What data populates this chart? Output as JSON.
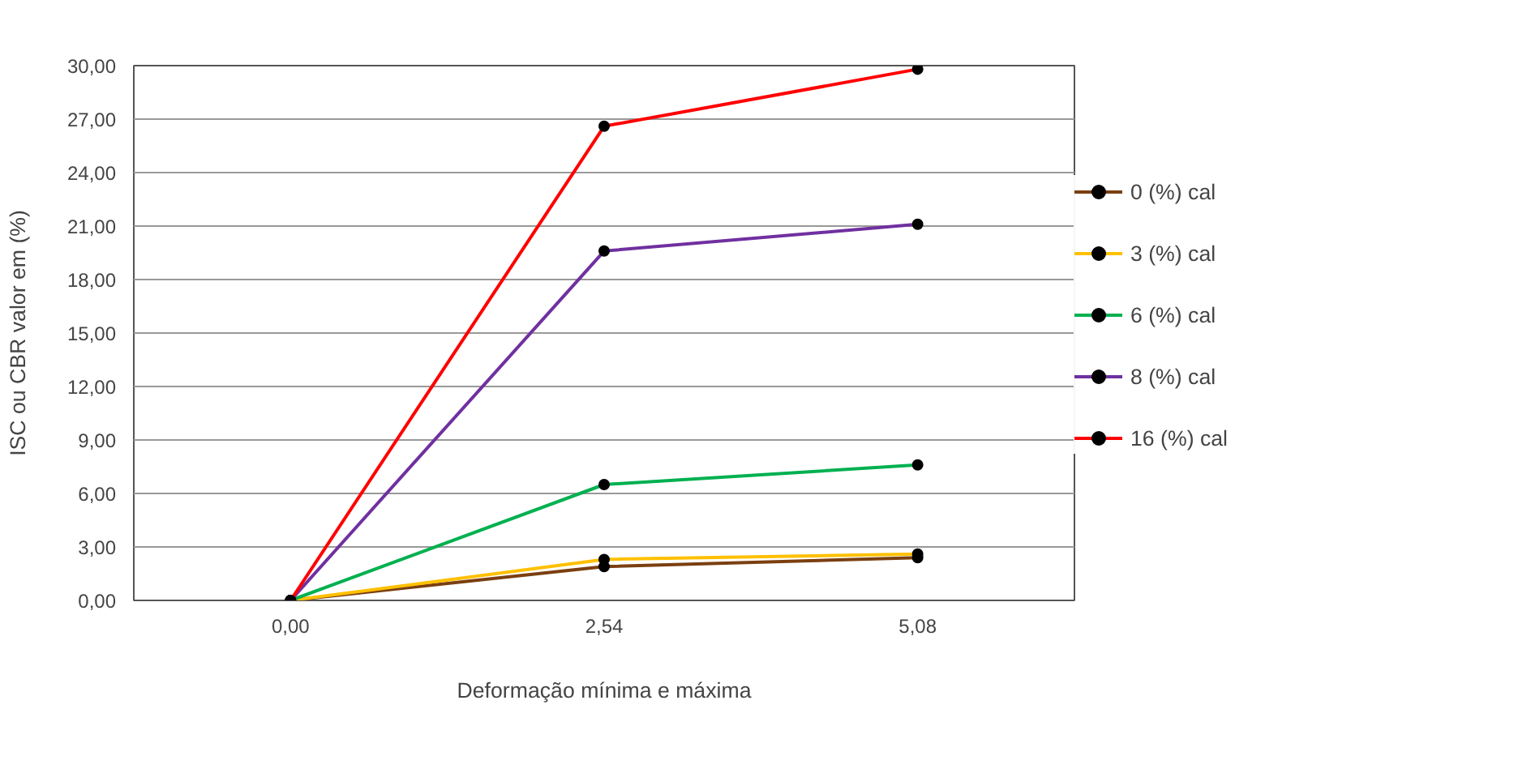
{
  "chart_data": {
    "type": "line",
    "categories": [
      "0,00",
      "2,54",
      "5,08"
    ],
    "xlabel": "Deformação mínima e máxima",
    "ylabel": "ISC ou CBR valor em (%)",
    "ylim": [
      0,
      30
    ],
    "yticks": [
      {
        "value": 0,
        "label": "0,00"
      },
      {
        "value": 3,
        "label": "3,00"
      },
      {
        "value": 6,
        "label": "6,00"
      },
      {
        "value": 9,
        "label": "9,00"
      },
      {
        "value": 12,
        "label": "12,00"
      },
      {
        "value": 15,
        "label": "15,00"
      },
      {
        "value": 18,
        "label": "18,00"
      },
      {
        "value": 21,
        "label": "21,00"
      },
      {
        "value": 24,
        "label": "24,00"
      },
      {
        "value": 27,
        "label": "27,00"
      },
      {
        "value": 30,
        "label": "30,00"
      }
    ],
    "grid": "y",
    "legend": "right",
    "marker": "circle",
    "line_style": "solid",
    "series": [
      {
        "name": "0 (%) cal",
        "color": "#7b3f10",
        "values": [
          0,
          1.9,
          2.4
        ]
      },
      {
        "name": "3 (%) cal",
        "color": "#ffc000",
        "values": [
          0,
          2.3,
          2.6
        ]
      },
      {
        "name": "6 (%) cal",
        "color": "#00b050",
        "values": [
          0,
          6.5,
          7.6
        ]
      },
      {
        "name": "8 (%) cal",
        "color": "#7030a0",
        "values": [
          0,
          19.6,
          21.1
        ]
      },
      {
        "name": "16 (%) cal",
        "color": "#ff0000",
        "values": [
          0,
          26.6,
          29.8
        ]
      }
    ]
  }
}
